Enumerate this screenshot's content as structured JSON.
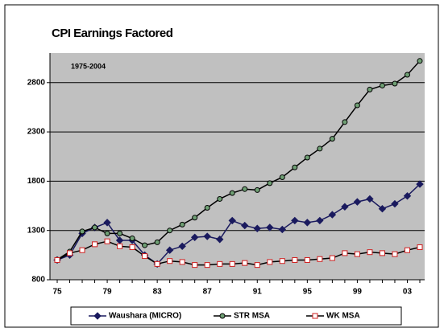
{
  "chart_data": {
    "type": "line",
    "title": "CPI Earnings Factored",
    "annotation": "1975-2004",
    "categories": [
      "75",
      null,
      null,
      null,
      "79",
      null,
      null,
      null,
      "83",
      null,
      null,
      null,
      "87",
      null,
      null,
      null,
      "91",
      null,
      null,
      null,
      "95",
      null,
      null,
      null,
      "99",
      null,
      null,
      null,
      "03",
      null
    ],
    "ylim": [
      800,
      3100
    ],
    "yticks": [
      800,
      1300,
      1800,
      2300,
      2800
    ],
    "grid": true,
    "legend": "bottom",
    "series": [
      {
        "name": "Waushara (MICRO)",
        "color": "#1a1a5e",
        "marker": "diamond",
        "marker_fill": "#1a1a5e",
        "values": [
          1000,
          1050,
          1270,
          1330,
          1380,
          1200,
          1200,
          1050,
          960,
          1100,
          1140,
          1230,
          1240,
          1210,
          1400,
          1350,
          1320,
          1330,
          1310,
          1400,
          1380,
          1400,
          1460,
          1540,
          1590,
          1620,
          1520,
          1570,
          1650,
          1770
        ]
      },
      {
        "name": "STR MSA",
        "color": "#000000",
        "marker": "circle",
        "marker_fill": "#6f9f74",
        "values": [
          1004,
          1085,
          1290,
          1330,
          1270,
          1270,
          1220,
          1150,
          1180,
          1300,
          1360,
          1430,
          1530,
          1620,
          1680,
          1720,
          1710,
          1780,
          1840,
          1940,
          2040,
          2130,
          2230,
          2400,
          2570,
          2730,
          2770,
          2790,
          2880,
          3020
        ]
      },
      {
        "name": "WK MSA",
        "color": "#000000",
        "marker": "square",
        "marker_fill": "#ffffff",
        "marker_stroke": "#d02020",
        "values": [
          1000,
          1070,
          1100,
          1160,
          1190,
          1140,
          1130,
          1040,
          960,
          990,
          980,
          950,
          950,
          960,
          960,
          970,
          950,
          980,
          990,
          1000,
          1000,
          1010,
          1020,
          1070,
          1060,
          1080,
          1070,
          1060,
          1100,
          1130
        ]
      }
    ]
  }
}
